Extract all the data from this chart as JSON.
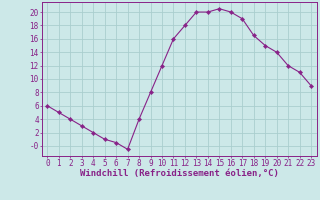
{
  "x": [
    0,
    1,
    2,
    3,
    4,
    5,
    6,
    7,
    8,
    9,
    10,
    11,
    12,
    13,
    14,
    15,
    16,
    17,
    18,
    19,
    20,
    21,
    22,
    23
  ],
  "y": [
    6,
    5,
    4,
    3,
    2,
    1,
    0.5,
    -0.5,
    4,
    8,
    12,
    16,
    18,
    20,
    20,
    20.5,
    20,
    19,
    16.5,
    15,
    14,
    12,
    11,
    9
  ],
  "line_color": "#882288",
  "marker": "D",
  "marker_size": 2.2,
  "background_color": "#cce8e8",
  "grid_color": "#aacece",
  "xlabel": "Windchill (Refroidissement éolien,°C)",
  "xlabel_color": "#882288",
  "tick_color": "#882288",
  "ylim": [
    -1.5,
    21.5
  ],
  "xlim": [
    -0.5,
    23.5
  ],
  "yticks": [
    0,
    2,
    4,
    6,
    8,
    10,
    12,
    14,
    16,
    18,
    20
  ],
  "xticks": [
    0,
    1,
    2,
    3,
    4,
    5,
    6,
    7,
    8,
    9,
    10,
    11,
    12,
    13,
    14,
    15,
    16,
    17,
    18,
    19,
    20,
    21,
    22,
    23
  ],
  "ytick_labels": [
    "-0",
    "2",
    "4",
    "6",
    "8",
    "10",
    "12",
    "14",
    "16",
    "18",
    "20"
  ],
  "spine_color": "#882288",
  "label_fontsize": 6.5,
  "tick_fontsize": 5.5
}
